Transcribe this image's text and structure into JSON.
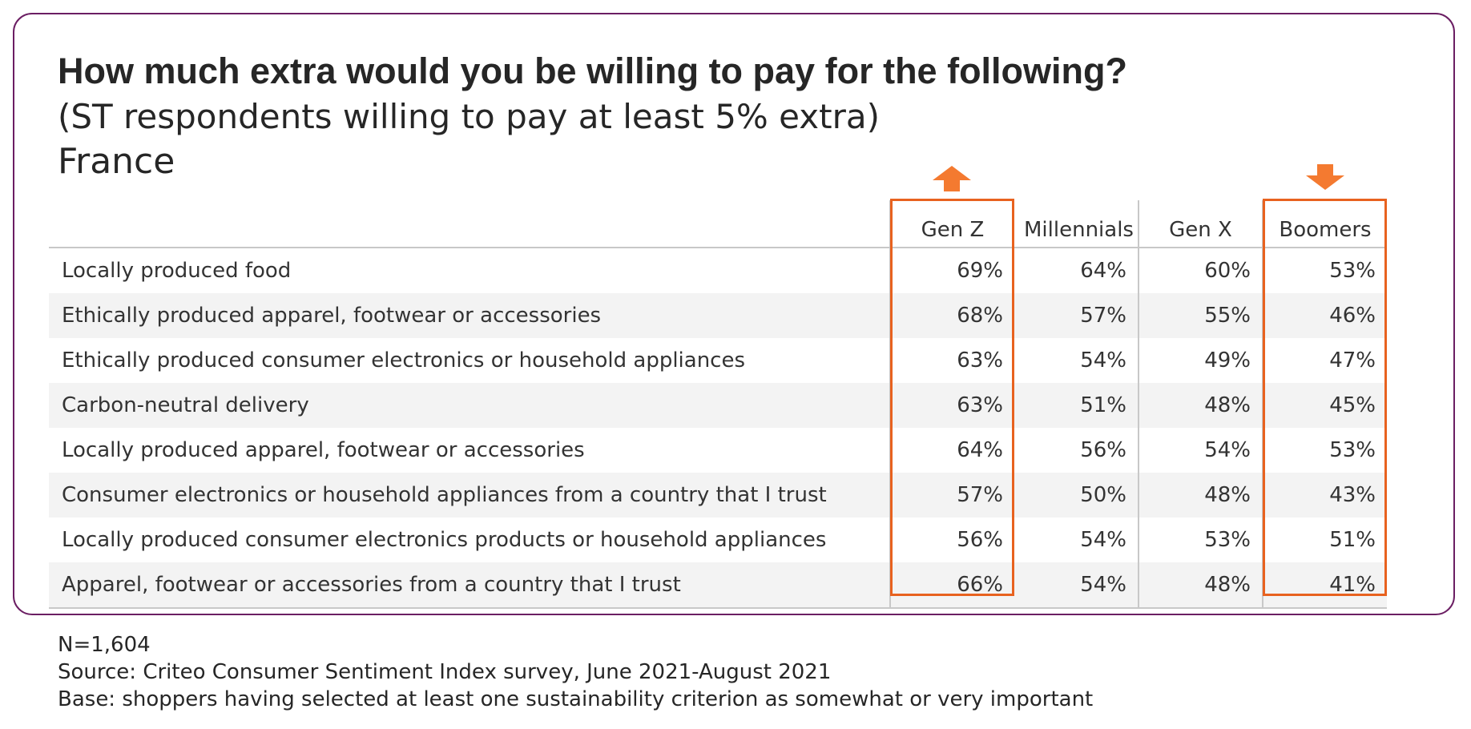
{
  "chart_data": {
    "type": "table",
    "title": "How much extra would you be willing to pay for the following?",
    "subtitle": "(ST respondents willing to pay at least 5% extra)",
    "region": "France",
    "columns": [
      "Gen Z",
      "Millennials",
      "Gen X",
      "Boomers"
    ],
    "rows": [
      {
        "label": "Locally produced food",
        "values": [
          "69%",
          "64%",
          "60%",
          "53%"
        ]
      },
      {
        "label": "Ethically produced apparel, footwear or accessories",
        "values": [
          "68%",
          "57%",
          "55%",
          "46%"
        ]
      },
      {
        "label": "Ethically produced consumer electronics or household appliances",
        "values": [
          "63%",
          "54%",
          "49%",
          "47%"
        ]
      },
      {
        "label": "Carbon-neutral delivery",
        "values": [
          "63%",
          "51%",
          "48%",
          "45%"
        ]
      },
      {
        "label": "Locally produced apparel, footwear or accessories",
        "values": [
          "64%",
          "56%",
          "54%",
          "53%"
        ]
      },
      {
        "label": "Consumer electronics or household appliances from a country that I trust",
        "values": [
          "57%",
          "50%",
          "48%",
          "43%"
        ]
      },
      {
        "label": "Locally produced consumer electronics products or household appliances",
        "values": [
          "56%",
          "54%",
          "53%",
          "51%"
        ]
      },
      {
        "label": "Apparel, footwear or accessories from a country that I trust",
        "values": [
          "66%",
          "54%",
          "48%",
          "41%"
        ]
      }
    ],
    "highlights": [
      {
        "column": "Gen Z",
        "arrow": "up"
      },
      {
        "column": "Boomers",
        "arrow": "down"
      }
    ]
  },
  "footer": {
    "sample": "N=1,604",
    "source": "Source: Criteo Consumer Sentiment Index survey, June 2021-August 2021",
    "base": "Base: shoppers having selected at least one sustainability criterion as somewhat or very important"
  },
  "colors": {
    "frame": "#6b1e63",
    "highlight": "#e8621f",
    "arrow": "#f47a30"
  }
}
